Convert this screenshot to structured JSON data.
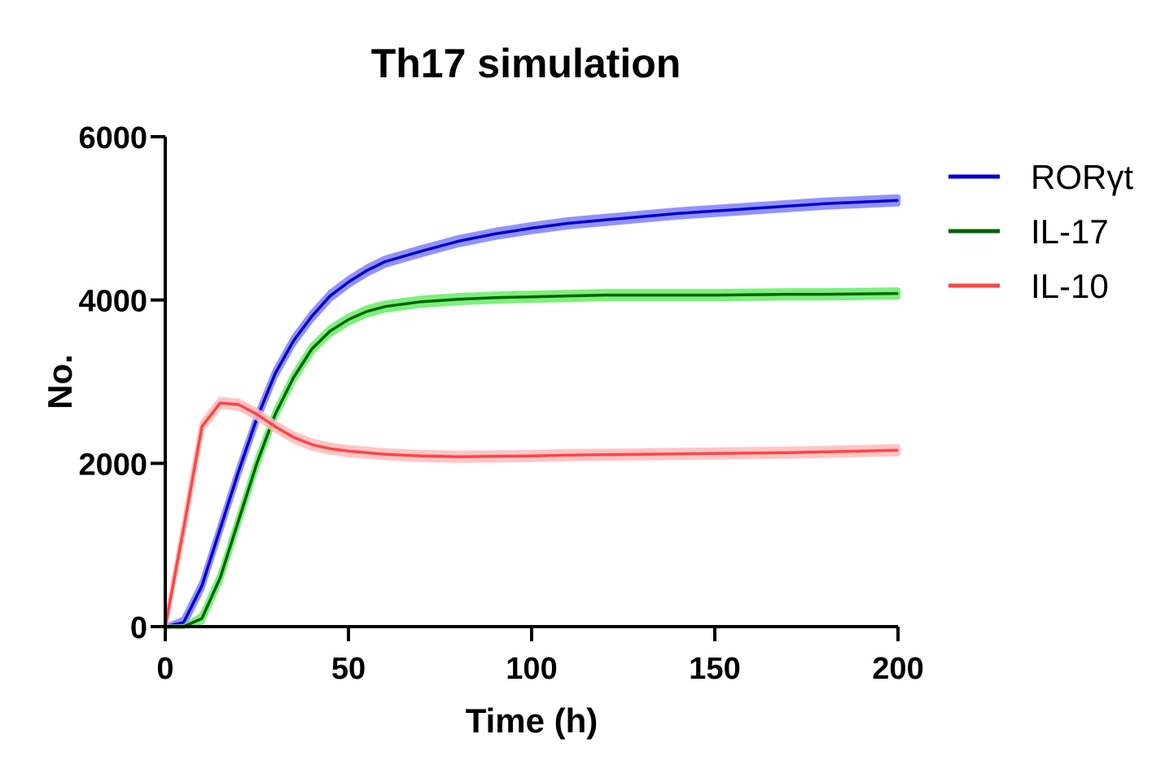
{
  "chart_data": {
    "type": "line",
    "title": "Th17 simulation",
    "xlabel": "Time (h)",
    "ylabel": "No.",
    "xlim": [
      0,
      200
    ],
    "ylim": [
      0,
      6000
    ],
    "x_ticks": [
      "0",
      "50",
      "100",
      "150",
      "200"
    ],
    "y_ticks": [
      "0",
      "2000",
      "4000",
      "6000"
    ],
    "grid": false,
    "legend_position": "top-right",
    "x": [
      0,
      5,
      10,
      15,
      20,
      25,
      30,
      35,
      40,
      45,
      50,
      55,
      60,
      70,
      80,
      90,
      100,
      110,
      120,
      130,
      140,
      150,
      160,
      170,
      180,
      190,
      200
    ],
    "series": [
      {
        "name": "RORγt",
        "color": "#0000cc",
        "band_color": "#8080ff",
        "values": [
          0,
          50,
          500,
          1200,
          1900,
          2550,
          3100,
          3500,
          3800,
          4050,
          4220,
          4360,
          4470,
          4600,
          4720,
          4810,
          4880,
          4940,
          4980,
          5020,
          5060,
          5090,
          5120,
          5150,
          5180,
          5200,
          5220
        ]
      },
      {
        "name": "IL-17",
        "color": "#006400",
        "band_color": "#66ee66",
        "values": [
          0,
          0,
          100,
          600,
          1300,
          2000,
          2600,
          3050,
          3400,
          3620,
          3760,
          3860,
          3920,
          3980,
          4010,
          4030,
          4040,
          4050,
          4060,
          4060,
          4060,
          4060,
          4065,
          4070,
          4070,
          4075,
          4080
        ]
      },
      {
        "name": "IL-10",
        "color": "#ff4444",
        "band_color": "#ffbbbb",
        "values": [
          0,
          1200,
          2450,
          2740,
          2720,
          2600,
          2450,
          2320,
          2230,
          2180,
          2150,
          2130,
          2110,
          2090,
          2080,
          2085,
          2090,
          2100,
          2105,
          2110,
          2115,
          2120,
          2125,
          2130,
          2140,
          2150,
          2160
        ]
      }
    ]
  }
}
